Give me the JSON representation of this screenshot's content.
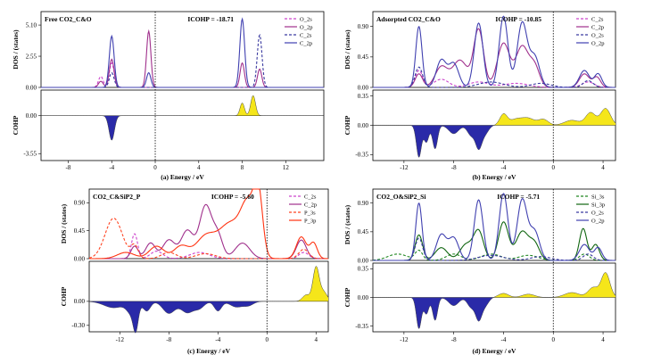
{
  "chart_data": [
    {
      "type": "line",
      "title": "Free CO2_C&O",
      "icohp_label": "ICOHP = -18.71",
      "caption": "(a) Energy / eV",
      "xlabel": "Energy / eV",
      "dos_ylabel": "DOS / (states)",
      "cohp_ylabel": "COHP",
      "xlim": [
        -10.5,
        15.5
      ],
      "xticks": [
        -8,
        -4,
        0,
        4,
        8,
        12
      ],
      "dos_ylim": [
        0,
        6.2
      ],
      "dos_yticks": [
        "5.10",
        "2.55",
        "0.00"
      ],
      "dos_ytick_values": [
        5.1,
        2.55,
        0
      ],
      "cohp_ylim": [
        -4.2,
        2.4
      ],
      "cohp_yticks": [
        "0.00",
        "-3.55"
      ],
      "cohp_ytick_values": [
        0,
        -3.55
      ],
      "series": [
        {
          "name": "O_2s",
          "color": "#cc44cc",
          "dash": "3,2",
          "peaks": [
            [
              -5.0,
              0.9,
              0.22
            ],
            [
              -4.0,
              2.0,
              0.22
            ]
          ]
        },
        {
          "name": "O_2p",
          "color": "#a0308c",
          "dash": "",
          "peaks": [
            [
              -5.0,
              0.5,
              0.22
            ],
            [
              -4.0,
              2.3,
              0.22
            ],
            [
              -0.6,
              4.6,
              0.2
            ],
            [
              8.0,
              2.0,
              0.2
            ],
            [
              9.6,
              1.5,
              0.2
            ]
          ]
        },
        {
          "name": "C_2s",
          "color": "#3a3aa0",
          "dash": "3,2",
          "peaks": [
            [
              -4.0,
              1.2,
              0.22
            ],
            [
              9.6,
              4.3,
              0.22
            ]
          ]
        },
        {
          "name": "C_2p",
          "color": "#4040b0",
          "dash": "",
          "peaks": [
            [
              -4.0,
              4.2,
              0.22
            ],
            [
              -0.6,
              1.2,
              0.2
            ],
            [
              8.0,
              5.6,
              0.22
            ]
          ]
        }
      ],
      "cohp": [
        [
          -4.0,
          -2.3,
          0.25
        ],
        [
          8.0,
          1.2,
          0.2
        ],
        [
          9.0,
          1.9,
          0.22
        ]
      ]
    },
    {
      "type": "line",
      "title": "Adsorpted CO2_C&O",
      "icohp_label": "ICOHP = -10.85",
      "caption": "(b) Energy / eV",
      "xlabel": "Energy / eV",
      "dos_ylabel": "DOS / (states)",
      "cohp_ylabel": "COHP",
      "xlim": [
        -14.5,
        5.0
      ],
      "xticks": [
        -12,
        -8,
        -4,
        0,
        4
      ],
      "dos_ylim": [
        0,
        1.12
      ],
      "dos_yticks": [
        "0.90",
        "0.45",
        "0.00"
      ],
      "dos_ytick_values": [
        0.9,
        0.45,
        0
      ],
      "cohp_ylim": [
        -0.42,
        0.42
      ],
      "cohp_yticks": [
        "0.35",
        "0.00",
        "-0.35"
      ],
      "cohp_ytick_values": [
        0.35,
        0,
        -0.35
      ],
      "series": [
        {
          "name": "C_2s",
          "color": "#cc44cc",
          "dash": "3,2",
          "peaks": [
            [
              -10.8,
              0.25,
              0.3
            ],
            [
              -9.0,
              0.12,
              0.6
            ],
            [
              -6.0,
              0.08,
              0.8
            ],
            [
              -3.0,
              0.06,
              1.0
            ],
            [
              2.8,
              0.08,
              0.5
            ]
          ]
        },
        {
          "name": "C_2p",
          "color": "#a0308c",
          "dash": "",
          "peaks": [
            [
              -10.8,
              0.2,
              0.3
            ],
            [
              -9.0,
              0.3,
              0.5
            ],
            [
              -7.5,
              0.4,
              0.6
            ],
            [
              -6.0,
              0.85,
              0.4
            ],
            [
              -4.0,
              0.65,
              0.5
            ],
            [
              -2.5,
              0.6,
              0.5
            ],
            [
              -1.5,
              0.3,
              0.4
            ],
            [
              2.5,
              0.2,
              0.4
            ],
            [
              3.5,
              0.15,
              0.3
            ]
          ]
        },
        {
          "name": "O_2s",
          "color": "#3a3aa0",
          "dash": "3,2",
          "peaks": [
            [
              -10.8,
              0.3,
              0.3
            ],
            [
              -5.0,
              0.08,
              1.0
            ],
            [
              -1.0,
              0.06,
              0.8
            ],
            [
              2.8,
              0.1,
              0.4
            ]
          ]
        },
        {
          "name": "O_2p",
          "color": "#4040b0",
          "dash": "",
          "peaks": [
            [
              -10.8,
              0.9,
              0.25
            ],
            [
              -9.0,
              0.4,
              0.4
            ],
            [
              -8.0,
              0.35,
              0.4
            ],
            [
              -6.0,
              0.95,
              0.35
            ],
            [
              -4.0,
              1.05,
              0.35
            ],
            [
              -2.5,
              0.95,
              0.4
            ],
            [
              -1.5,
              0.45,
              0.4
            ],
            [
              2.5,
              0.25,
              0.4
            ],
            [
              3.6,
              0.2,
              0.3
            ]
          ]
        }
      ],
      "cohp": [
        [
          -10.8,
          -0.38,
          0.2
        ],
        [
          -10.2,
          -0.2,
          0.2
        ],
        [
          -9.5,
          -0.28,
          0.2
        ],
        [
          -8.0,
          -0.1,
          0.4
        ],
        [
          -6.6,
          -0.12,
          0.3
        ],
        [
          -6.0,
          -0.25,
          0.25
        ],
        [
          -5.5,
          -0.1,
          0.3
        ],
        [
          -4.0,
          0.13,
          0.3
        ],
        [
          -3.0,
          0.07,
          0.5
        ],
        [
          -2.0,
          0.08,
          0.5
        ],
        [
          -0.8,
          0.07,
          0.4
        ],
        [
          1.5,
          0.06,
          0.6
        ],
        [
          3.0,
          0.15,
          0.4
        ],
        [
          4.2,
          0.2,
          0.4
        ]
      ]
    },
    {
      "type": "line",
      "title": "CO2_C&SiP2_P",
      "icohp_label": "ICOHP = -5.60",
      "caption": "(c) Energy / eV",
      "xlabel": "Energy / eV",
      "dos_ylabel": "DOS / (states)",
      "cohp_ylabel": "COHP",
      "xlim": [
        -14.5,
        5.0
      ],
      "xticks": [
        -12,
        -8,
        -4,
        0,
        4
      ],
      "dos_ylim": [
        0,
        1.12
      ],
      "dos_yticks": [
        "0.90",
        "0.45",
        "0.00"
      ],
      "dos_ytick_values": [
        0.9,
        0.45,
        0
      ],
      "cohp_ylim": [
        -0.38,
        0.5
      ],
      "cohp_yticks": [
        "0.00",
        "-0.30"
      ],
      "cohp_ytick_values": [
        0,
        -0.3
      ],
      "series": [
        {
          "name": "C_2s",
          "color": "#cc44cc",
          "dash": "3,2",
          "peaks": [
            [
              -10.8,
              0.4,
              0.25
            ],
            [
              -9.0,
              0.12,
              0.5
            ],
            [
              -5.5,
              0.1,
              0.8
            ],
            [
              3.0,
              0.1,
              0.4
            ]
          ]
        },
        {
          "name": "C_2p",
          "color": "#a0308c",
          "dash": "",
          "peaks": [
            [
              -10.8,
              0.2,
              0.3
            ],
            [
              -9.5,
              0.25,
              0.4
            ],
            [
              -8.0,
              0.3,
              0.5
            ],
            [
              -6.5,
              0.45,
              0.5
            ],
            [
              -5.0,
              0.85,
              0.5
            ],
            [
              -4.0,
              0.35,
              0.4
            ],
            [
              -2.0,
              0.25,
              0.6
            ],
            [
              2.8,
              0.3,
              0.4
            ]
          ]
        },
        {
          "name": "P_3s",
          "color": "#ff4422",
          "dash": "3,2",
          "peaks": [
            [
              -12.5,
              0.65,
              0.7
            ],
            [
              -10.8,
              0.2,
              0.3
            ],
            [
              -8.0,
              0.1,
              0.6
            ],
            [
              -5.0,
              0.08,
              0.8
            ],
            [
              3.0,
              0.15,
              0.4
            ]
          ]
        },
        {
          "name": "P_3p",
          "color": "#ff3311",
          "dash": "",
          "peaks": [
            [
              -11.5,
              0.1,
              0.7
            ],
            [
              -9.0,
              0.2,
              0.6
            ],
            [
              -7.0,
              0.2,
              0.6
            ],
            [
              -5.0,
              0.35,
              0.8
            ],
            [
              -3.0,
              0.55,
              0.9
            ],
            [
              -1.5,
              0.8,
              0.6
            ],
            [
              -0.7,
              0.9,
              0.35
            ],
            [
              2.8,
              0.35,
              0.4
            ],
            [
              3.8,
              0.25,
              0.3
            ]
          ]
        }
      ],
      "cohp": [
        [
          -12.5,
          -0.08,
          0.8
        ],
        [
          -11.0,
          -0.15,
          0.4
        ],
        [
          -10.7,
          -0.27,
          0.2
        ],
        [
          -9.8,
          -0.12,
          0.3
        ],
        [
          -8.0,
          -0.15,
          0.5
        ],
        [
          -6.5,
          -0.14,
          0.5
        ],
        [
          -5.5,
          -0.08,
          0.4
        ],
        [
          -4.0,
          -0.12,
          0.3
        ],
        [
          -2.5,
          -0.07,
          0.5
        ],
        [
          -1.5,
          -0.05,
          0.4
        ],
        [
          3.2,
          0.08,
          0.3
        ],
        [
          4.0,
          0.42,
          0.25
        ],
        [
          4.6,
          0.12,
          0.3
        ]
      ]
    },
    {
      "type": "line",
      "title": "CO2_O&SiP2_Si",
      "icohp_label": "ICOHP = -5.71",
      "caption": "(d) Energy / eV",
      "xlabel": "Energy / eV",
      "dos_ylabel": "DOS / (states)",
      "cohp_ylabel": "COHP",
      "xlim": [
        -14.5,
        5.0
      ],
      "xticks": [
        -12,
        -8,
        -4,
        0,
        4
      ],
      "dos_ylim": [
        0,
        1.12
      ],
      "dos_yticks": [
        "0.90",
        "0.45",
        "0.00"
      ],
      "dos_ytick_values": [
        0.9,
        0.45,
        0
      ],
      "cohp_ylim": [
        -0.42,
        0.42
      ],
      "cohp_yticks": [
        "0.35",
        "0.00",
        "-0.35"
      ],
      "cohp_ytick_values": [
        0.35,
        0,
        -0.35
      ],
      "series": [
        {
          "name": "Si_3s",
          "color": "#228822",
          "dash": "3,2",
          "peaks": [
            [
              -12.5,
              0.1,
              0.8
            ],
            [
              -10.8,
              0.15,
              0.3
            ],
            [
              -8.0,
              0.1,
              0.6
            ],
            [
              -5.0,
              0.1,
              0.8
            ],
            [
              -2.0,
              0.08,
              0.8
            ],
            [
              2.5,
              0.1,
              0.4
            ]
          ]
        },
        {
          "name": "Si_3p",
          "color": "#116611",
          "dash": "",
          "peaks": [
            [
              -10.8,
              0.4,
              0.3
            ],
            [
              -9.0,
              0.2,
              0.5
            ],
            [
              -7.0,
              0.25,
              0.5
            ],
            [
              -6.0,
              0.45,
              0.4
            ],
            [
              -4.0,
              0.6,
              0.4
            ],
            [
              -2.5,
              0.45,
              0.5
            ],
            [
              -1.5,
              0.25,
              0.4
            ],
            [
              2.4,
              0.5,
              0.3
            ],
            [
              3.4,
              0.25,
              0.3
            ]
          ]
        },
        {
          "name": "O_2s",
          "color": "#3a3aa0",
          "dash": "3,2",
          "peaks": [
            [
              -10.8,
              0.35,
              0.3
            ],
            [
              -5.0,
              0.08,
              1.0
            ],
            [
              -1.0,
              0.06,
              0.8
            ],
            [
              2.8,
              0.1,
              0.4
            ]
          ]
        },
        {
          "name": "O_2p",
          "color": "#4040b0",
          "dash": "",
          "peaks": [
            [
              -10.8,
              0.9,
              0.25
            ],
            [
              -9.0,
              0.4,
              0.4
            ],
            [
              -8.0,
              0.35,
              0.4
            ],
            [
              -6.0,
              0.95,
              0.35
            ],
            [
              -4.0,
              1.05,
              0.35
            ],
            [
              -2.5,
              0.95,
              0.4
            ],
            [
              -1.5,
              0.45,
              0.4
            ],
            [
              2.5,
              0.25,
              0.4
            ],
            [
              3.6,
              0.2,
              0.3
            ]
          ]
        }
      ],
      "cohp": [
        [
          -10.8,
          -0.38,
          0.2
        ],
        [
          -10.2,
          -0.2,
          0.2
        ],
        [
          -9.5,
          -0.28,
          0.2
        ],
        [
          -8.0,
          -0.1,
          0.4
        ],
        [
          -6.6,
          -0.12,
          0.3
        ],
        [
          -6.0,
          -0.25,
          0.25
        ],
        [
          -5.5,
          -0.1,
          0.3
        ],
        [
          -4.0,
          0.05,
          0.4
        ],
        [
          -2.0,
          0.04,
          0.5
        ],
        [
          1.5,
          0.06,
          0.6
        ],
        [
          3.2,
          0.12,
          0.4
        ],
        [
          4.2,
          0.3,
          0.35
        ]
      ]
    }
  ]
}
